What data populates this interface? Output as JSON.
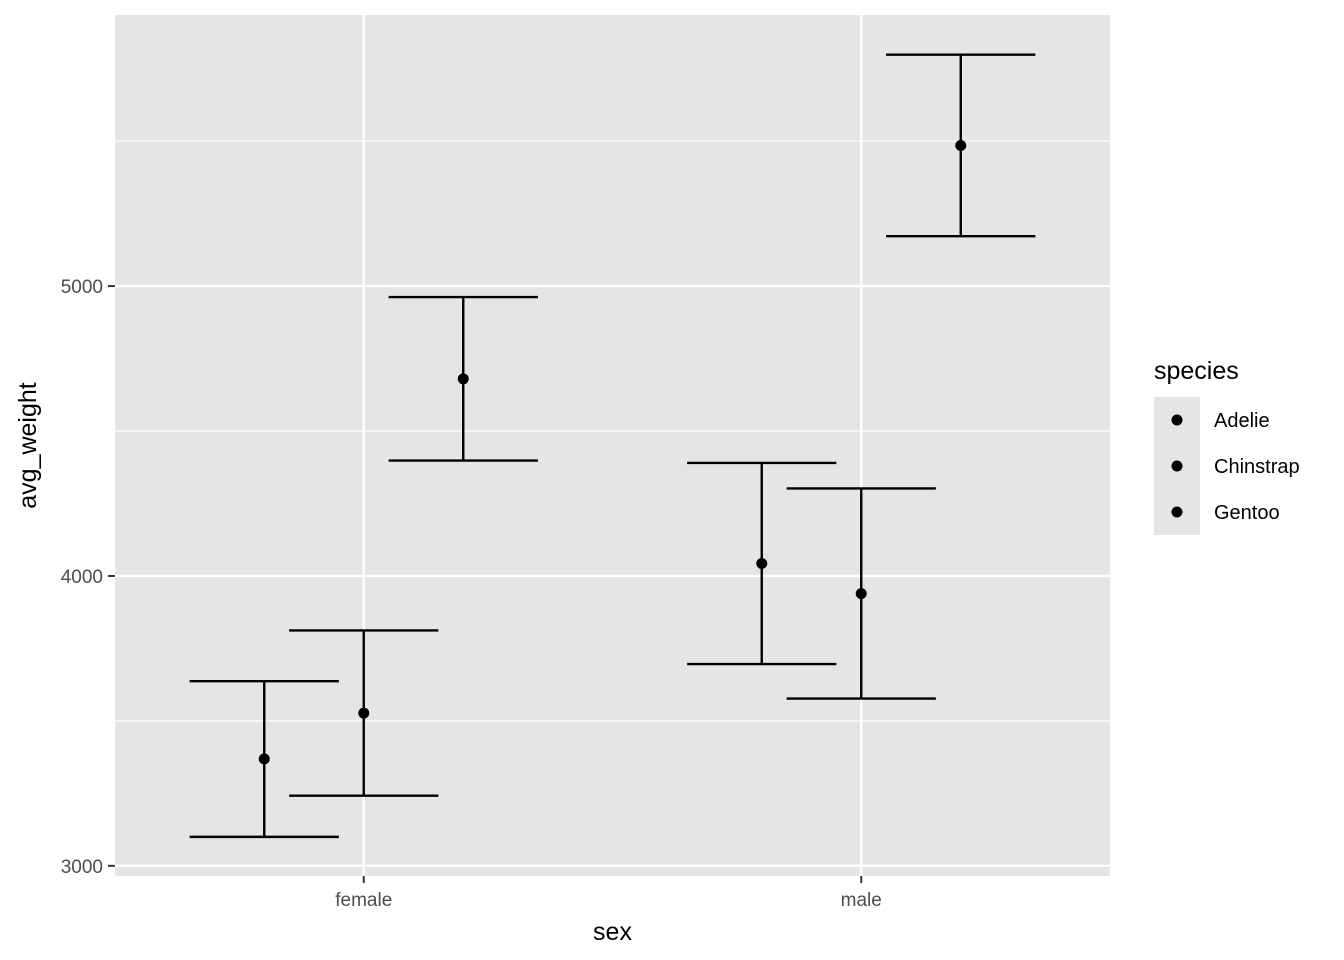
{
  "chart_data": {
    "type": "errorbar",
    "xlabel": "sex",
    "ylabel": "avg_weight",
    "categories": [
      "female",
      "male"
    ],
    "ylim": [
      2965,
      5935
    ],
    "y_ticks": [
      3000,
      4000,
      5000
    ],
    "y_tick_labels": [
      "3000",
      "4000",
      "5000"
    ],
    "grid": true,
    "legend": {
      "title": "species",
      "position": "right",
      "entries": [
        "Adelie",
        "Chinstrap",
        "Gentoo"
      ]
    },
    "series": [
      {
        "name": "Adelie",
        "points": [
          {
            "x": "female",
            "y": 3369,
            "ymin": 3100,
            "ymax": 3637
          },
          {
            "x": "male",
            "y": 4043,
            "ymin": 3696,
            "ymax": 4390
          }
        ]
      },
      {
        "name": "Chinstrap",
        "points": [
          {
            "x": "female",
            "y": 3527,
            "ymin": 3242,
            "ymax": 3812
          },
          {
            "x": "male",
            "y": 3939,
            "ymin": 3577,
            "ymax": 4302
          }
        ]
      },
      {
        "name": "Gentoo",
        "points": [
          {
            "x": "female",
            "y": 4680,
            "ymin": 4398,
            "ymax": 4962
          },
          {
            "x": "male",
            "y": 5485,
            "ymin": 5172,
            "ymax": 5798
          }
        ]
      }
    ]
  },
  "colors": {
    "panel": "#e5e5e5",
    "grid": "#ffffff",
    "marks": "#000000",
    "text": "#4d4d4d"
  }
}
